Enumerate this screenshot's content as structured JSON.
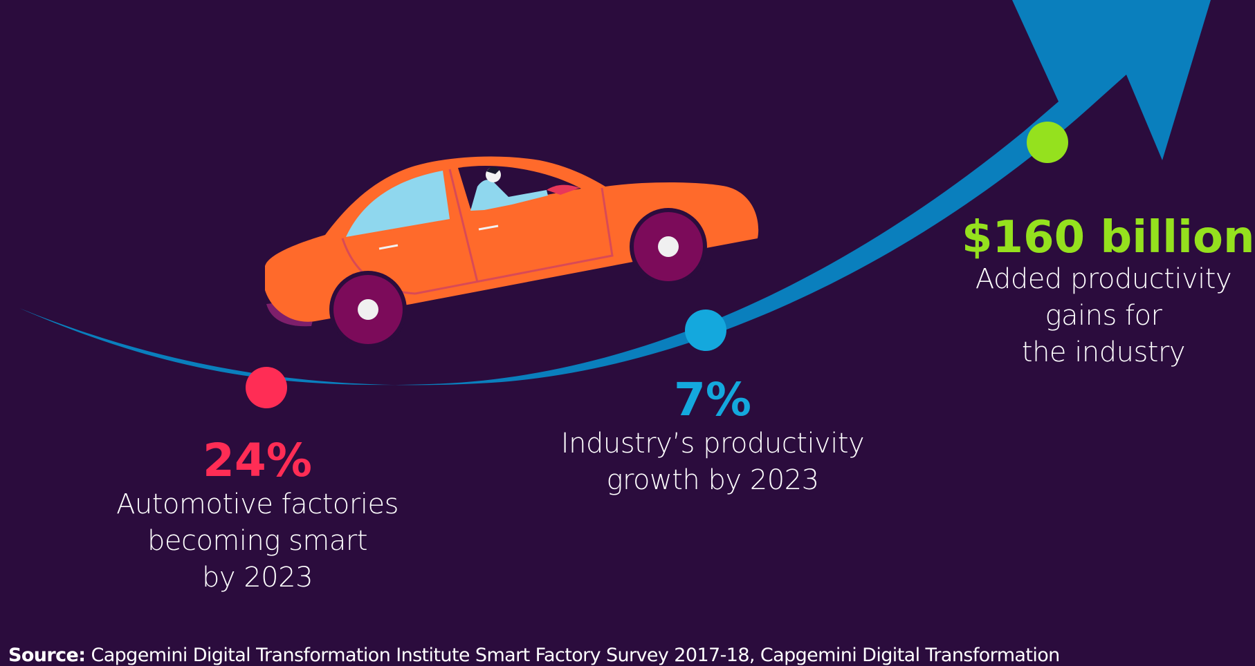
{
  "stats": [
    {
      "value": "24%",
      "description": "Automotive factories\nbecoming smart\nby 2023",
      "color": "#ff2d55"
    },
    {
      "value": "7%",
      "description": "Industry’s productivity\ngrowth by 2023",
      "color": "#14a8dd"
    },
    {
      "value": "$160 billion",
      "description": "Added productivity\ngains for\nthe industry",
      "color": "#95e11e"
    }
  ],
  "source": {
    "label": "Source:",
    "text": "Capgemini Digital Transformation Institute Smart Factory Survey 2017-18, Capgemini Digital Transformation"
  },
  "illustration": {
    "icon": "car-with-driver-icon",
    "arrow_icon": "growth-arrow-icon"
  },
  "colors": {
    "background": "#2b0c3d",
    "arrow": "#0a7fbd",
    "car_body": "#ff6a2b",
    "wheel": "#7c0b5a"
  }
}
